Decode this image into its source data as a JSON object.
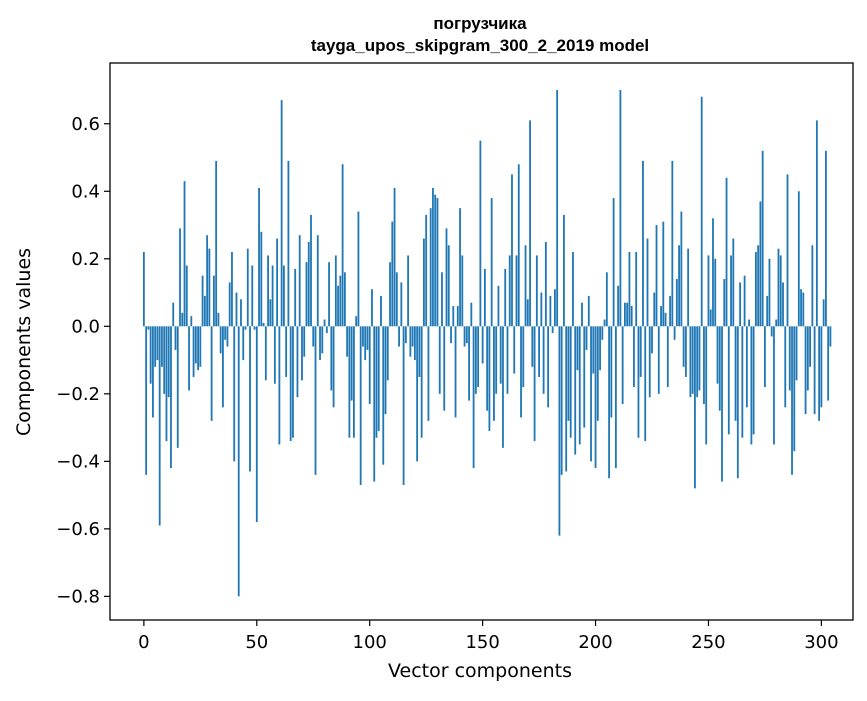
{
  "chart_data": {
    "type": "bar",
    "title": "погрузчика",
    "subtitle": "tayga_upos_skipgram_300_2_2019 model",
    "xlabel": "Vector components",
    "ylabel": "Components values",
    "xlim": [
      -15,
      314
    ],
    "ylim": [
      -0.87,
      0.78
    ],
    "xticks": [
      0,
      50,
      100,
      150,
      200,
      250,
      300
    ],
    "yticks": [
      0.6,
      0.4,
      0.2,
      0.0,
      -0.2,
      -0.4,
      -0.6,
      -0.8
    ],
    "ytick_labels": [
      "0.6",
      "0.4",
      "0.2",
      "0.0",
      "−0.2",
      "−0.4",
      "−0.6",
      "−0.8"
    ],
    "grid": false,
    "colors": {
      "bar": "#1f77b4",
      "axis": "#000000"
    },
    "x_start": 0,
    "values": [
      0.22,
      -0.44,
      -0.01,
      -0.17,
      -0.27,
      -0.12,
      -0.1,
      -0.59,
      -0.12,
      -0.2,
      -0.34,
      -0.21,
      -0.42,
      0.07,
      -0.07,
      -0.36,
      0.29,
      0.04,
      0.43,
      0.18,
      -0.19,
      0.03,
      -0.15,
      -0.11,
      -0.13,
      -0.12,
      0.15,
      0.09,
      0.27,
      0.23,
      -0.28,
      0.15,
      0.49,
      0.04,
      -0.08,
      -0.24,
      -0.04,
      -0.06,
      0.13,
      0.22,
      -0.4,
      0.1,
      -0.8,
      0.08,
      -0.1,
      -0.01,
      0.23,
      -0.43,
      0.18,
      -0.01,
      -0.58,
      0.41,
      0.28,
      0.01,
      -0.16,
      0.21,
      0.08,
      0.18,
      -0.17,
      0.26,
      -0.35,
      0.67,
      0.18,
      -0.15,
      0.49,
      -0.34,
      -0.33,
      0.17,
      -0.21,
      0.27,
      -0.16,
      -0.09,
      0.19,
      0.25,
      0.33,
      -0.06,
      -0.44,
      0.27,
      -0.1,
      -0.08,
      0.02,
      -0.02,
      0.19,
      -0.19,
      -0.24,
      0.21,
      0.12,
      0.15,
      0.48,
      0.16,
      -0.09,
      -0.33,
      -0.22,
      -0.33,
      0.03,
      0.34,
      -0.47,
      -0.06,
      -0.1,
      -0.07,
      -0.23,
      0.11,
      -0.46,
      -0.33,
      -0.31,
      0.09,
      -0.41,
      -0.26,
      -0.16,
      0.19,
      0.31,
      0.41,
      0.16,
      -0.06,
      0.13,
      -0.47,
      -0.05,
      0.21,
      -0.09,
      -0.06,
      -0.1,
      -0.4,
      -0.15,
      -0.33,
      0.26,
      0.33,
      -0.28,
      0.35,
      0.41,
      0.39,
      0.38,
      -0.2,
      0.16,
      -0.25,
      0.29,
      0.24,
      -0.05,
      0.06,
      -0.27,
      0.06,
      0.35,
      0.21,
      -0.06,
      -0.05,
      -0.22,
      0.07,
      -0.42,
      -0.2,
      -0.18,
      0.55,
      -0.11,
      0.17,
      -0.25,
      -0.31,
      0.38,
      -0.28,
      -0.2,
      0.12,
      -0.17,
      -0.36,
      0.17,
      -0.2,
      0.21,
      0.45,
      -0.14,
      0.21,
      0.48,
      -0.27,
      -0.18,
      0.24,
      0.08,
      0.61,
      -0.12,
      -0.34,
      0.21,
      -0.15,
      0.1,
      -0.2,
      0.25,
      -0.24,
      0.09,
      -0.02,
      0.11,
      0.7,
      -0.62,
      -0.44,
      0.33,
      -0.43,
      -0.28,
      -0.33,
      0.22,
      -0.38,
      -0.13,
      -0.35,
      0.07,
      -0.3,
      -0.07,
      0.09,
      -0.4,
      -0.14,
      -0.42,
      -0.28,
      -0.13,
      -0.04,
      0.02,
      0.16,
      -0.45,
      -0.27,
      0.38,
      -0.42,
      0.12,
      0.7,
      -0.23,
      0.07,
      0.07,
      0.22,
      0.06,
      -0.18,
      0.22,
      -0.33,
      -0.15,
      0.49,
      -0.34,
      0.26,
      -0.21,
      -0.08,
      0.1,
      0.3,
      -0.2,
      0.06,
      0.31,
      0.04,
      -0.18,
      0.09,
      0.49,
      -0.04,
      0.14,
      0.24,
      0.34,
      -0.12,
      -0.15,
      0.23,
      -0.21,
      -0.2,
      -0.48,
      -0.21,
      -0.19,
      0.68,
      -0.23,
      -0.35,
      0.21,
      0.05,
      0.32,
      0.2,
      -0.17,
      -0.25,
      -0.46,
      0.14,
      0.44,
      -0.32,
      0.21,
      0.26,
      -0.28,
      -0.45,
      0.13,
      -0.33,
      0.15,
      -0.24,
      0.02,
      -0.35,
      -0.32,
      0.22,
      0.24,
      0.37,
      0.52,
      -0.18,
      0.09,
      0.2,
      -0.03,
      -0.35,
      0.02,
      0.23,
      0.21,
      0.13,
      -0.24,
      0.45,
      -0.19,
      -0.44,
      -0.37,
      -0.16,
      0.4,
      0.11,
      0.1,
      -0.26,
      -0.19,
      -0.12,
      0.24,
      -0.26,
      0.61,
      -0.28,
      -0.24,
      0.08,
      0.52,
      -0.22,
      -0.06
    ]
  }
}
